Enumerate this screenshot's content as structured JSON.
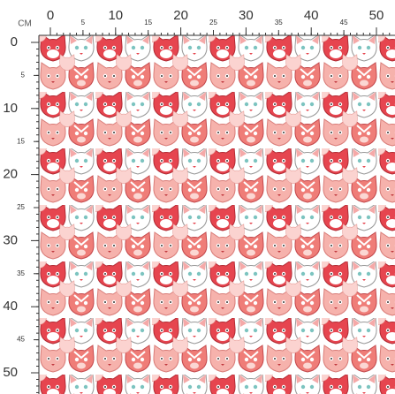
{
  "ruler": {
    "unit": "CM",
    "top": [
      0,
      5,
      10,
      15,
      20,
      25,
      30,
      35,
      40,
      45,
      50
    ],
    "left": [
      0,
      5,
      10,
      15,
      20,
      25,
      30,
      35,
      40,
      45,
      50
    ]
  }
}
